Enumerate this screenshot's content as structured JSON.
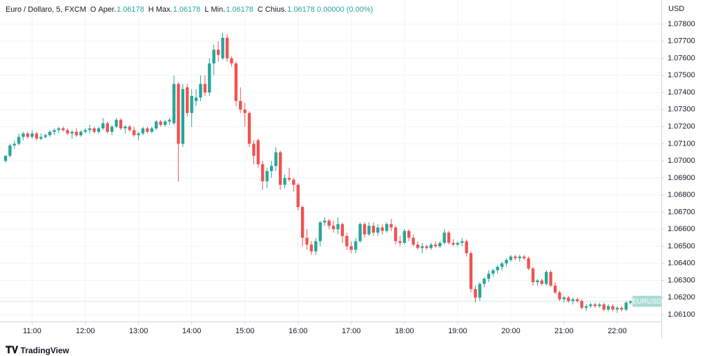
{
  "chart_data": {
    "type": "candlestick",
    "symbol": "Euro / Dollaro, 5, FXCM",
    "legend": [
      [
        "O",
        "Aper.",
        "1.06178"
      ],
      [
        "H",
        "Max.",
        "1.06178"
      ],
      [
        "L",
        "Min.",
        "1.06178"
      ],
      [
        "C",
        "Chius.",
        "1.06178"
      ]
    ],
    "change": "0.00000 (0.00%)",
    "currency": "USD",
    "last_price": 1.06178,
    "last_label": "EURUSD",
    "brand": "TradingView",
    "up_color": "#26a69a",
    "down_color": "#ef5350",
    "ylim": [
      1.0606,
      1.07941
    ],
    "yticks": [
      {
        "value": 1.061,
        "label": "1.06100"
      },
      {
        "value": 1.062,
        "label": "1.06200"
      },
      {
        "value": 1.063,
        "label": "1.06300"
      },
      {
        "value": 1.064,
        "label": "1.06400"
      },
      {
        "value": 1.065,
        "label": "1.06500"
      },
      {
        "value": 1.066,
        "label": "1.06600"
      },
      {
        "value": 1.067,
        "label": "1.06700"
      },
      {
        "value": 1.068,
        "label": "1.06800"
      },
      {
        "value": 1.069,
        "label": "1.06900"
      },
      {
        "value": 1.07,
        "label": "1.07000"
      },
      {
        "value": 1.071,
        "label": "1.07100"
      },
      {
        "value": 1.072,
        "label": "1.07200"
      },
      {
        "value": 1.073,
        "label": "1.07300"
      },
      {
        "value": 1.074,
        "label": "1.07400"
      },
      {
        "value": 1.075,
        "label": "1.07500"
      },
      {
        "value": 1.076,
        "label": "1.07600"
      },
      {
        "value": 1.077,
        "label": "1.07700"
      },
      {
        "value": 1.078,
        "label": "1.07800"
      }
    ],
    "xticks": [
      "11:00",
      "12:00",
      "13:00",
      "14:00",
      "15:00",
      "16:00",
      "17:00",
      "18:00",
      "19:00",
      "20:00",
      "21:00",
      "22:00"
    ],
    "x": [
      "10:30",
      "10:35",
      "10:40",
      "10:45",
      "10:50",
      "10:55",
      "11:00",
      "11:05",
      "11:10",
      "11:15",
      "11:20",
      "11:25",
      "11:30",
      "11:35",
      "11:40",
      "11:45",
      "11:50",
      "11:55",
      "12:00",
      "12:05",
      "12:10",
      "12:15",
      "12:20",
      "12:25",
      "12:30",
      "12:35",
      "12:40",
      "12:45",
      "12:50",
      "12:55",
      "13:00",
      "13:05",
      "13:10",
      "13:15",
      "13:20",
      "13:25",
      "13:30",
      "13:35",
      "13:40",
      "13:45",
      "13:50",
      "13:55",
      "14:00",
      "14:05",
      "14:10",
      "14:15",
      "14:20",
      "14:25",
      "14:30",
      "14:35",
      "14:40",
      "14:45",
      "14:50",
      "14:55",
      "15:00",
      "15:05",
      "15:10",
      "15:15",
      "15:20",
      "15:25",
      "15:30",
      "15:35",
      "15:40",
      "15:45",
      "15:50",
      "15:55",
      "16:00",
      "16:05",
      "16:10",
      "16:15",
      "16:20",
      "16:25",
      "16:30",
      "16:35",
      "16:40",
      "16:45",
      "16:50",
      "16:55",
      "17:00",
      "17:05",
      "17:10",
      "17:15",
      "17:20",
      "17:25",
      "17:30",
      "17:35",
      "17:40",
      "17:45",
      "17:50",
      "17:55",
      "18:00",
      "18:05",
      "18:10",
      "18:15",
      "18:20",
      "18:25",
      "18:30",
      "18:35",
      "18:40",
      "18:45",
      "18:50",
      "18:55",
      "19:00",
      "19:05",
      "19:10",
      "19:15",
      "19:20",
      "19:25",
      "19:30",
      "19:35",
      "19:40",
      "19:45",
      "19:50",
      "19:55",
      "20:00",
      "20:05",
      "20:10",
      "20:15",
      "20:20",
      "20:25",
      "20:30",
      "20:35",
      "20:40",
      "20:45",
      "20:50",
      "20:55",
      "21:00",
      "21:05",
      "21:10",
      "21:15",
      "21:20",
      "21:25",
      "21:30",
      "21:35",
      "21:40",
      "21:45",
      "21:50",
      "21:55",
      "22:00",
      "22:05",
      "22:10",
      "22:15"
    ],
    "ohlc": [
      [
        1.07,
        1.0703,
        1.0699,
        1.0703
      ],
      [
        1.0703,
        1.071,
        1.0702,
        1.0709
      ],
      [
        1.0709,
        1.0712,
        1.0707,
        1.071
      ],
      [
        1.071,
        1.0716,
        1.0709,
        1.0714
      ],
      [
        1.0714,
        1.0717,
        1.0712,
        1.0716
      ],
      [
        1.0716,
        1.0717,
        1.0713,
        1.0714
      ],
      [
        1.0714,
        1.0718,
        1.0713,
        1.0716
      ],
      [
        1.0716,
        1.0717,
        1.0712,
        1.0713
      ],
      [
        1.0713,
        1.0716,
        1.0712,
        1.0714
      ],
      [
        1.0714,
        1.0716,
        1.0713,
        1.0715
      ],
      [
        1.0715,
        1.0718,
        1.0714,
        1.0717
      ],
      [
        1.0717,
        1.0719,
        1.0715,
        1.0718
      ],
      [
        1.0718,
        1.072,
        1.0716,
        1.0719
      ],
      [
        1.0719,
        1.072,
        1.0717,
        1.0718
      ],
      [
        1.0718,
        1.0719,
        1.0715,
        1.0716
      ],
      [
        1.0716,
        1.0718,
        1.0713,
        1.0717
      ],
      [
        1.0717,
        1.0719,
        1.0714,
        1.0715
      ],
      [
        1.0715,
        1.0718,
        1.0714,
        1.0717
      ],
      [
        1.0717,
        1.0719,
        1.0716,
        1.0718
      ],
      [
        1.0718,
        1.0721,
        1.0716,
        1.0719
      ],
      [
        1.0719,
        1.072,
        1.0716,
        1.0717
      ],
      [
        1.0717,
        1.072,
        1.0716,
        1.0719
      ],
      [
        1.0719,
        1.0725,
        1.0718,
        1.0722
      ],
      [
        1.0722,
        1.0723,
        1.0716,
        1.0717
      ],
      [
        1.0717,
        1.0721,
        1.0715,
        1.072
      ],
      [
        1.072,
        1.0725,
        1.0719,
        1.0724
      ],
      [
        1.0724,
        1.0725,
        1.0718,
        1.0719
      ],
      [
        1.0719,
        1.0721,
        1.0716,
        1.072
      ],
      [
        1.072,
        1.0721,
        1.0717,
        1.0718
      ],
      [
        1.0718,
        1.072,
        1.0714,
        1.0715
      ],
      [
        1.0715,
        1.0717,
        1.0712,
        1.0716
      ],
      [
        1.0716,
        1.072,
        1.0715,
        1.0719
      ],
      [
        1.0719,
        1.072,
        1.0716,
        1.0717
      ],
      [
        1.0717,
        1.072,
        1.0716,
        1.0719
      ],
      [
        1.0719,
        1.0724,
        1.0718,
        1.0723
      ],
      [
        1.0723,
        1.0724,
        1.072,
        1.0721
      ],
      [
        1.0721,
        1.0724,
        1.072,
        1.0723
      ],
      [
        1.0723,
        1.0725,
        1.0721,
        1.0724
      ],
      [
        1.0722,
        1.075,
        1.0721,
        1.0745
      ],
      [
        1.0745,
        1.0746,
        1.0688,
        1.071
      ],
      [
        1.071,
        1.0745,
        1.0708,
        1.0742
      ],
      [
        1.0743,
        1.0745,
        1.0726,
        1.0728
      ],
      [
        1.0728,
        1.0742,
        1.072,
        1.0738
      ],
      [
        1.0735,
        1.0742,
        1.0732,
        1.0737
      ],
      [
        1.0737,
        1.075,
        1.0735,
        1.0745
      ],
      [
        1.0745,
        1.075,
        1.0738,
        1.074
      ],
      [
        1.074,
        1.076,
        1.0738,
        1.0757
      ],
      [
        1.0757,
        1.0768,
        1.075,
        1.0765
      ],
      [
        1.0765,
        1.077,
        1.0758,
        1.0762
      ],
      [
        1.076,
        1.0775,
        1.0759,
        1.0772
      ],
      [
        1.0772,
        1.0774,
        1.0758,
        1.076
      ],
      [
        1.076,
        1.0761,
        1.0755,
        1.0757
      ],
      [
        1.0757,
        1.0758,
        1.0732,
        1.0735
      ],
      [
        1.0735,
        1.0743,
        1.0728,
        1.073
      ],
      [
        1.073,
        1.0734,
        1.072,
        1.0728
      ],
      [
        1.0728,
        1.0729,
        1.0708,
        1.071
      ],
      [
        1.071,
        1.0712,
        1.0698,
        1.0703
      ],
      [
        1.0712,
        1.0713,
        1.0696,
        1.0698
      ],
      [
        1.0698,
        1.07,
        1.0683,
        1.0688
      ],
      [
        1.0688,
        1.0696,
        1.0684,
        1.0694
      ],
      [
        1.0694,
        1.07,
        1.069,
        1.0697
      ],
      [
        1.0697,
        1.0708,
        1.0694,
        1.0705
      ],
      [
        1.0705,
        1.0706,
        1.0683,
        1.0686
      ],
      [
        1.0686,
        1.0692,
        1.0684,
        1.069
      ],
      [
        1.069,
        1.0696,
        1.0688,
        1.0689
      ],
      [
        1.0689,
        1.069,
        1.0682,
        1.0686
      ],
      [
        1.0686,
        1.0687,
        1.0671,
        1.0673
      ],
      [
        1.0673,
        1.0674,
        1.065,
        1.0655
      ],
      [
        1.0655,
        1.066,
        1.0648,
        1.0651
      ],
      [
        1.0651,
        1.0653,
        1.0645,
        1.0647
      ],
      [
        1.0647,
        1.0655,
        1.0645,
        1.0653
      ],
      [
        1.0653,
        1.0665,
        1.065,
        1.0664
      ],
      [
        1.0664,
        1.0667,
        1.0662,
        1.0665
      ],
      [
        1.0665,
        1.0666,
        1.066,
        1.0662
      ],
      [
        1.0662,
        1.0665,
        1.0658,
        1.066
      ],
      [
        1.066,
        1.0667,
        1.0657,
        1.0663
      ],
      [
        1.0663,
        1.0664,
        1.0652,
        1.0656
      ],
      [
        1.0656,
        1.0658,
        1.0648,
        1.065
      ],
      [
        1.065,
        1.0653,
        1.0646,
        1.0648
      ],
      [
        1.0648,
        1.0655,
        1.0646,
        1.0653
      ],
      [
        1.0653,
        1.0664,
        1.0652,
        1.0663
      ],
      [
        1.0663,
        1.0664,
        1.0655,
        1.0657
      ],
      [
        1.0657,
        1.0664,
        1.0656,
        1.0662
      ],
      [
        1.0662,
        1.0664,
        1.0656,
        1.0658
      ],
      [
        1.0658,
        1.0663,
        1.0656,
        1.0661
      ],
      [
        1.0661,
        1.0663,
        1.0657,
        1.0659
      ],
      [
        1.0659,
        1.0664,
        1.0658,
        1.0663
      ],
      [
        1.0663,
        1.0666,
        1.0659,
        1.0661
      ],
      [
        1.0661,
        1.0662,
        1.0651,
        1.0653
      ],
      [
        1.0653,
        1.0656,
        1.065,
        1.0652
      ],
      [
        1.0652,
        1.066,
        1.0651,
        1.0659
      ],
      [
        1.0659,
        1.066,
        1.0653,
        1.0655
      ],
      [
        1.0655,
        1.0657,
        1.065,
        1.0651
      ],
      [
        1.0651,
        1.0653,
        1.0648,
        1.0649
      ],
      [
        1.0649,
        1.0652,
        1.0646,
        1.065
      ],
      [
        1.065,
        1.0651,
        1.0648,
        1.0649
      ],
      [
        1.0649,
        1.0652,
        1.0648,
        1.0651
      ],
      [
        1.0651,
        1.0653,
        1.0649,
        1.065
      ],
      [
        1.065,
        1.0653,
        1.0649,
        1.0652
      ],
      [
        1.0652,
        1.066,
        1.0651,
        1.0658
      ],
      [
        1.0658,
        1.0659,
        1.0651,
        1.0652
      ],
      [
        1.0652,
        1.0654,
        1.065,
        1.0651
      ],
      [
        1.0651,
        1.0653,
        1.065,
        1.0652
      ],
      [
        1.0652,
        1.0655,
        1.065,
        1.0653
      ],
      [
        1.0653,
        1.0654,
        1.0644,
        1.0646
      ],
      [
        1.0646,
        1.0647,
        1.0623,
        1.0625
      ],
      [
        1.0625,
        1.0627,
        1.0617,
        1.062
      ],
      [
        1.062,
        1.0629,
        1.0618,
        1.0628
      ],
      [
        1.0628,
        1.0632,
        1.0626,
        1.0631
      ],
      [
        1.0631,
        1.0636,
        1.0629,
        1.0634
      ],
      [
        1.0634,
        1.0637,
        1.0632,
        1.0636
      ],
      [
        1.0636,
        1.0639,
        1.0634,
        1.0638
      ],
      [
        1.0638,
        1.0641,
        1.0636,
        1.064
      ],
      [
        1.064,
        1.0643,
        1.0638,
        1.0642
      ],
      [
        1.0642,
        1.0645,
        1.0641,
        1.0644
      ],
      [
        1.0644,
        1.0645,
        1.0642,
        1.0643
      ],
      [
        1.0643,
        1.0645,
        1.0641,
        1.0644
      ],
      [
        1.0644,
        1.0645,
        1.0642,
        1.0643
      ],
      [
        1.0643,
        1.0644,
        1.0636,
        1.0637
      ],
      [
        1.0637,
        1.0638,
        1.0627,
        1.0629
      ],
      [
        1.0629,
        1.0631,
        1.0627,
        1.063
      ],
      [
        1.063,
        1.0631,
        1.0627,
        1.0628
      ],
      [
        1.0628,
        1.0636,
        1.0627,
        1.0635
      ],
      [
        1.0635,
        1.0636,
        1.0626,
        1.0627
      ],
      [
        1.0627,
        1.0629,
        1.0622,
        1.0623
      ],
      [
        1.0623,
        1.0624,
        1.0618,
        1.0619
      ],
      [
        1.0619,
        1.0621,
        1.0617,
        1.062
      ],
      [
        1.062,
        1.0621,
        1.0617,
        1.0618
      ],
      [
        1.0618,
        1.062,
        1.0616,
        1.0619
      ],
      [
        1.0619,
        1.062,
        1.0617,
        1.0618
      ],
      [
        1.0618,
        1.0619,
        1.0613,
        1.0614
      ],
      [
        1.0614,
        1.0616,
        1.0612,
        1.0615
      ],
      [
        1.0615,
        1.0617,
        1.0614,
        1.0616
      ],
      [
        1.0616,
        1.0617,
        1.0614,
        1.0615
      ],
      [
        1.0615,
        1.0617,
        1.0614,
        1.0616
      ],
      [
        1.0616,
        1.0617,
        1.0612,
        1.0613
      ],
      [
        1.0613,
        1.0616,
        1.0612,
        1.0615
      ],
      [
        1.0615,
        1.0616,
        1.0612,
        1.0613
      ],
      [
        1.0613,
        1.0615,
        1.0611,
        1.0614
      ],
      [
        1.0614,
        1.0615,
        1.0612,
        1.0613
      ],
      [
        1.0613,
        1.0618,
        1.0612,
        1.0617
      ],
      [
        1.0617,
        1.06185,
        1.0616,
        1.06178
      ]
    ]
  }
}
